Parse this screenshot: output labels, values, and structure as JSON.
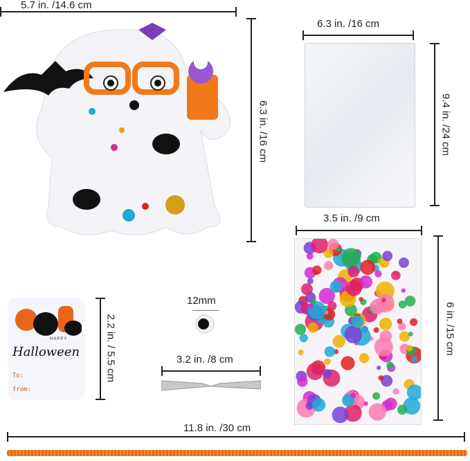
{
  "dimensions": {
    "ghost_width": "5.7 in. /14.6 cm",
    "ghost_height": "6.3 in. /16 cm",
    "bag_width": "6.3 in. /16 cm",
    "bag_height": "9.4 in. /24 cm",
    "sticker_width": "3.5 in. /9 cm",
    "sticker_height": "6 in. /15 cm",
    "tag_height": "2.2 in. / 5.5 cm",
    "eye_size": "12mm",
    "twist_tie_length": "3.2 in. /8 cm",
    "string_length": "11.8 in. /30 cm"
  },
  "gift_tag": {
    "happy": "HAPPY",
    "halloween": "Halloween",
    "to": "To:",
    "from": "from:"
  },
  "colors": {
    "orange": "#f07a1a",
    "purple": "#7b3fb5",
    "string": "#e86a12"
  }
}
